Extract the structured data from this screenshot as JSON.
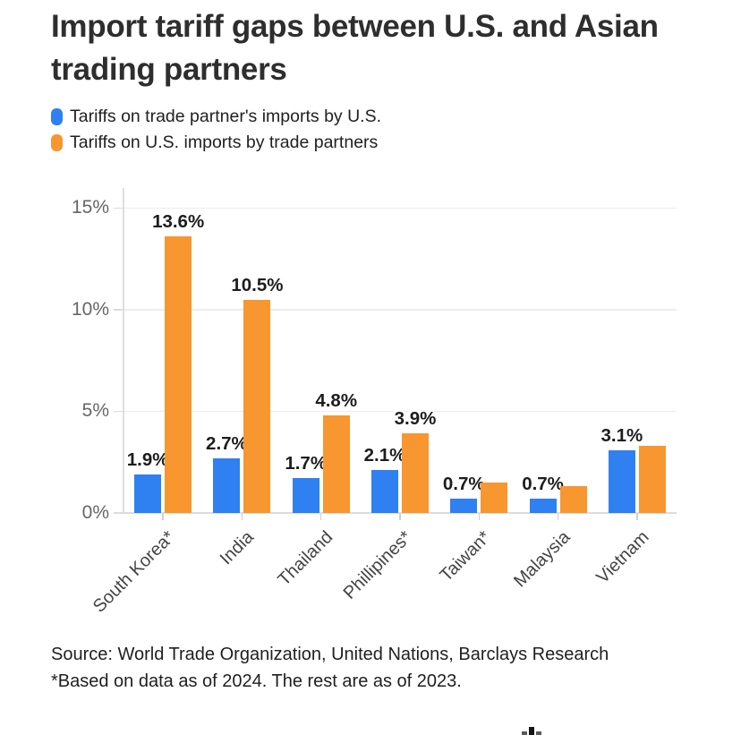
{
  "title": "Import tariff gaps between U.S. and Asian trading partners",
  "colors": {
    "us_series_blue": "#2F80F0",
    "partner_series_orange": "#F8962F",
    "grid": "#ececec",
    "axis": "#dcdcdc"
  },
  "legend": [
    {
      "label": "Tariffs on trade partner's imports by U.S.",
      "color": "#2F80F0"
    },
    {
      "label": "Tariffs on U.S. imports by trade partners",
      "color": "#F8962F"
    }
  ],
  "chart_data": {
    "type": "bar",
    "title": "Import tariff gaps between U.S. and Asian trading partners",
    "categories": [
      "South Korea*",
      "India",
      "Thailand",
      "Phillipines*",
      "Taiwan*",
      "Malaysia",
      "Vietnam"
    ],
    "series": [
      {
        "name": "Tariffs on trade partner's imports by U.S.",
        "color": "#2F80F0",
        "values": [
          1.9,
          2.7,
          1.7,
          2.1,
          0.7,
          0.7,
          3.1
        ],
        "labels": [
          "1.9%",
          "2.7%",
          "1.7%",
          "2.1%",
          "0.7%",
          "0.7%",
          "3.1%"
        ]
      },
      {
        "name": "Tariffs on U.S. imports by trade partners",
        "color": "#F8962F",
        "values": [
          13.6,
          10.5,
          4.8,
          3.9,
          1.5,
          1.3,
          3.3
        ],
        "labels": [
          "13.6%",
          "10.5%",
          "4.8%",
          "3.9%",
          "",
          "",
          ""
        ]
      }
    ],
    "xlabel": "",
    "ylabel": "",
    "ylim": [
      0,
      15
    ],
    "yticks": [
      {
        "value": 0,
        "label": "0%"
      },
      {
        "value": 5,
        "label": "5%"
      },
      {
        "value": 10,
        "label": "10%"
      },
      {
        "value": 15,
        "label": "15%"
      }
    ],
    "grid": true,
    "legend_position": "top-left"
  },
  "footer": {
    "source_line": "Source: World Trade Organization, United Nations, Barclays Research",
    "note_line": "*Based on data as of 2024. The rest are as of 2023."
  }
}
